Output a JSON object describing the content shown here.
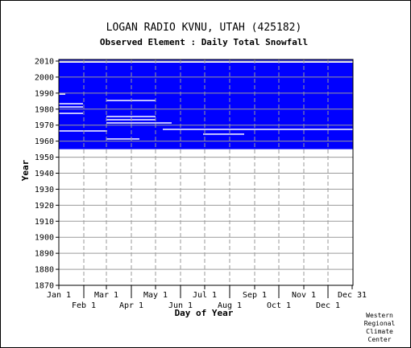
{
  "chart_data": {
    "type": "heatmap",
    "title": "LOGAN RADIO KVNU, UTAH   (425182)",
    "subtitle": "Observed Element : Daily Total Snowfall",
    "xlabel": "Day of Year",
    "ylabel": "Year",
    "ylim": [
      1870,
      2011
    ],
    "y_ticks": [
      1870,
      1880,
      1890,
      1900,
      1910,
      1920,
      1930,
      1940,
      1950,
      1960,
      1970,
      1980,
      1990,
      2000,
      2010
    ],
    "x_ticks_upper": [
      {
        "label": "Jan 1",
        "day": 1
      },
      {
        "label": "Mar 1",
        "day": 60
      },
      {
        "label": "May 1",
        "day": 121
      },
      {
        "label": "Jul 1",
        "day": 182
      },
      {
        "label": "Sep 1",
        "day": 244
      },
      {
        "label": "Nov 1",
        "day": 305
      },
      {
        "label": "Dec 31",
        "day": 365
      }
    ],
    "x_ticks_lower": [
      {
        "label": "Feb 1",
        "day": 32
      },
      {
        "label": "Apr 1",
        "day": 91
      },
      {
        "label": "Jun 1",
        "day": 152
      },
      {
        "label": "Aug 1",
        "day": 213
      },
      {
        "label": "Oct 1",
        "day": 274
      },
      {
        "label": "Dec 1",
        "day": 335
      }
    ],
    "grid": true,
    "data_color": "#0000ff",
    "missing_color": "#ffffff",
    "series": [
      {
        "values": [
          {
            "year_start": 1955,
            "year_end": 2010,
            "day_start": 1,
            "day_end": 365
          }
        ]
      }
    ],
    "gaps": [
      {
        "year": 2009,
        "day_start": 1,
        "day_end": 365,
        "note": "partial"
      },
      {
        "year": 1989,
        "day_start": 1,
        "day_end": 8
      },
      {
        "year": 1985,
        "day_start": 60,
        "day_end": 120
      },
      {
        "year": 1983,
        "day_start": 1,
        "day_end": 30
      },
      {
        "year": 1981,
        "day_start": 1,
        "day_end": 30
      },
      {
        "year": 1977,
        "day_start": 1,
        "day_end": 30
      },
      {
        "year": 1975,
        "day_start": 60,
        "day_end": 120
      },
      {
        "year": 1973,
        "day_start": 60,
        "day_end": 120
      },
      {
        "year": 1971,
        "day_start": 60,
        "day_end": 140
      },
      {
        "year": 1967,
        "day_start": 130,
        "day_end": 365
      },
      {
        "year": 1966,
        "day_start": 1,
        "day_end": 60
      },
      {
        "year": 1964,
        "day_start": 180,
        "day_end": 230
      },
      {
        "year": 1961,
        "day_start": 60,
        "day_end": 100
      }
    ]
  },
  "credit": [
    "Western",
    "Regional",
    "Climate",
    "Center"
  ]
}
